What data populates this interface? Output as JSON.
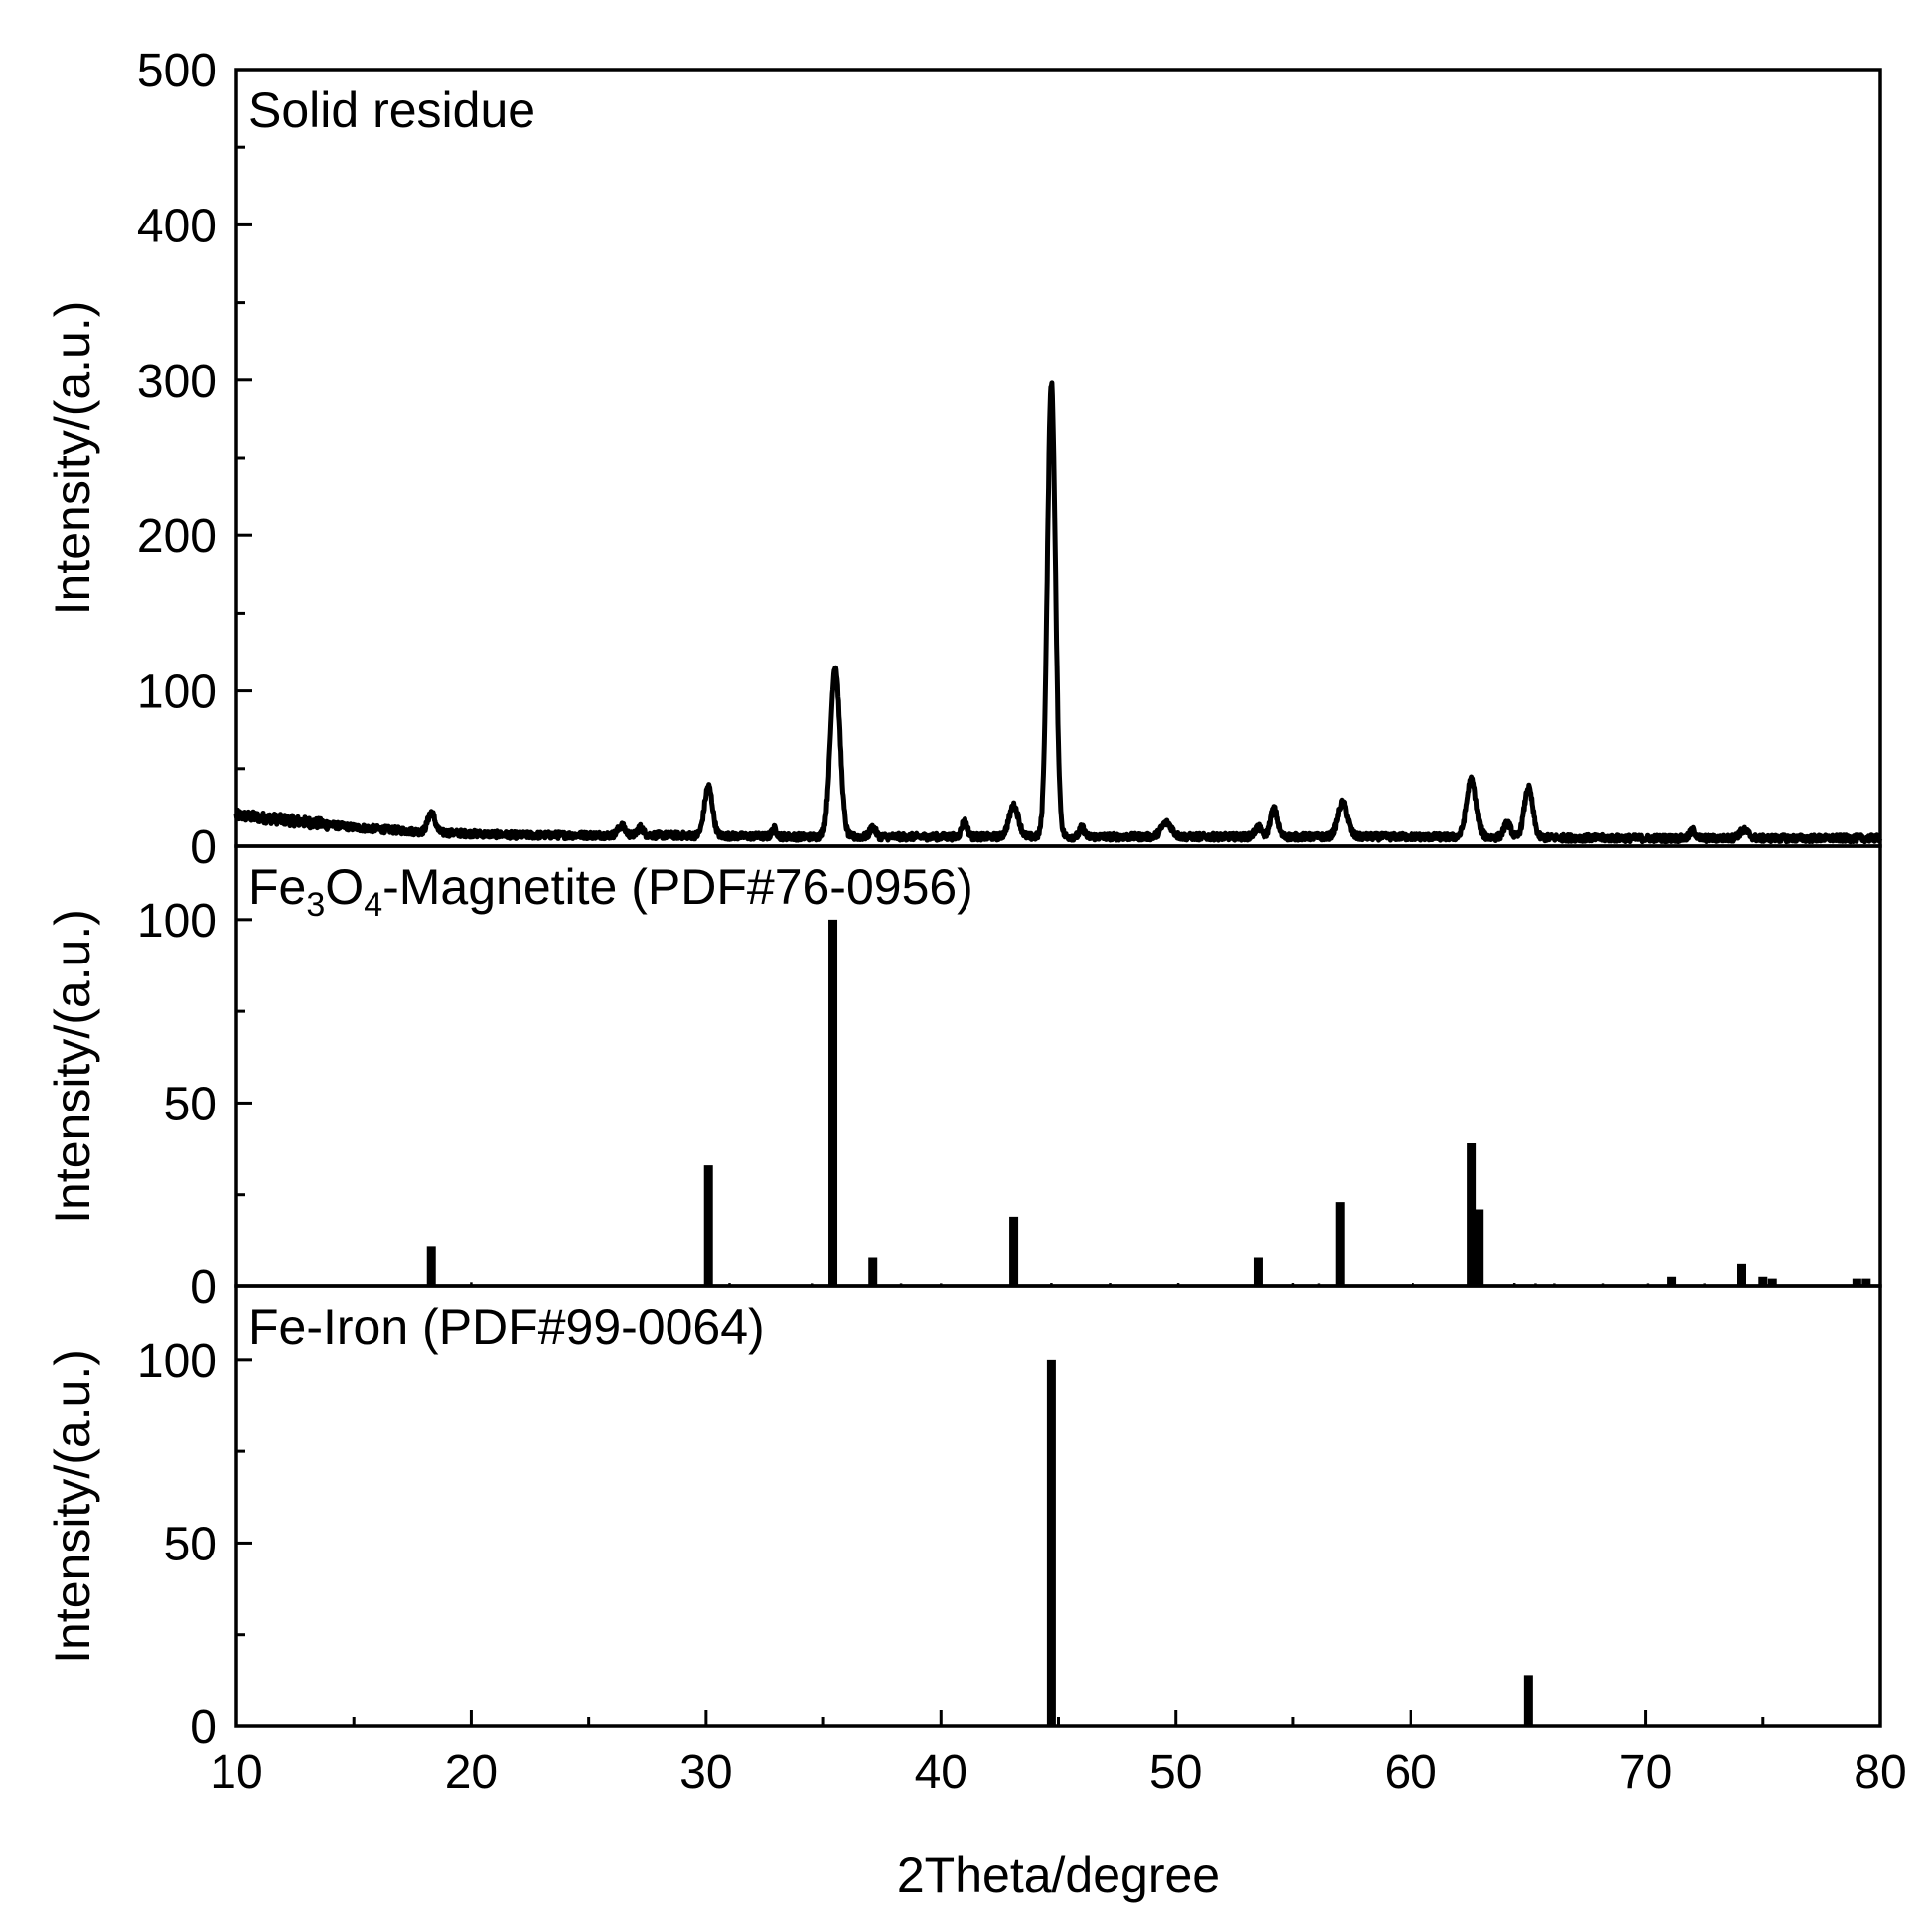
{
  "chart_data": {
    "type": "line",
    "xlabel": "2Theta/degree",
    "xlim": [
      10,
      80
    ],
    "x_ticks": [
      "10",
      "20",
      "30",
      "40",
      "50",
      "60",
      "70",
      "80"
    ],
    "panels": [
      {
        "id": "residue",
        "label": "Solid residue",
        "ylabel": "Intensity/(a.u.)",
        "ylim": [
          0,
          500
        ],
        "y_ticks": [
          "0",
          "100",
          "200",
          "300",
          "400",
          "500"
        ],
        "kind": "pattern",
        "baseline": [
          [
            10,
            20
          ],
          [
            12,
            17
          ],
          [
            15,
            12
          ],
          [
            18,
            9
          ],
          [
            22,
            7
          ],
          [
            28,
            7
          ],
          [
            34,
            6
          ],
          [
            40,
            6
          ],
          [
            50,
            6
          ],
          [
            60,
            6
          ],
          [
            70,
            5
          ],
          [
            80,
            5
          ]
        ],
        "peaks": [
          {
            "x": 18.3,
            "y": 13,
            "w": 0.15
          },
          {
            "x": 26.4,
            "y": 6,
            "w": 0.15
          },
          {
            "x": 27.2,
            "y": 5,
            "w": 0.12
          },
          {
            "x": 30.1,
            "y": 32,
            "w": 0.17
          },
          {
            "x": 32.9,
            "y": 5,
            "w": 0.1
          },
          {
            "x": 35.5,
            "y": 110,
            "w": 0.2
          },
          {
            "x": 37.1,
            "y": 6,
            "w": 0.12
          },
          {
            "x": 41.0,
            "y": 10,
            "w": 0.12
          },
          {
            "x": 43.1,
            "y": 20,
            "w": 0.2
          },
          {
            "x": 44.7,
            "y": 292,
            "w": 0.17
          },
          {
            "x": 46.0,
            "y": 6,
            "w": 0.1
          },
          {
            "x": 49.6,
            "y": 9,
            "w": 0.22
          },
          {
            "x": 53.5,
            "y": 6,
            "w": 0.15
          },
          {
            "x": 54.2,
            "y": 18,
            "w": 0.15
          },
          {
            "x": 57.1,
            "y": 22,
            "w": 0.2
          },
          {
            "x": 62.6,
            "y": 37,
            "w": 0.2
          },
          {
            "x": 64.1,
            "y": 9,
            "w": 0.15
          },
          {
            "x": 65.0,
            "y": 32,
            "w": 0.18
          },
          {
            "x": 72.0,
            "y": 5,
            "w": 0.12
          },
          {
            "x": 74.2,
            "y": 5,
            "w": 0.2
          }
        ]
      },
      {
        "id": "magnetite",
        "label_parts": [
          "Fe",
          "3",
          "O",
          "4",
          "-Magnetite (PDF#76-0956)"
        ],
        "ylabel": "Intensity/(a.u.)",
        "ylim": [
          0,
          120
        ],
        "y_ticks": [
          "0",
          "50",
          "100"
        ],
        "kind": "sticks",
        "sticks": [
          [
            18.3,
            11
          ],
          [
            30.1,
            33
          ],
          [
            35.4,
            100
          ],
          [
            37.1,
            8
          ],
          [
            43.1,
            19
          ],
          [
            53.5,
            8
          ],
          [
            57.0,
            23
          ],
          [
            62.6,
            39
          ],
          [
            62.9,
            21
          ],
          [
            71.1,
            2.5
          ],
          [
            74.1,
            6
          ],
          [
            75.0,
            2.5
          ],
          [
            75.4,
            2
          ],
          [
            79.0,
            2
          ],
          [
            79.4,
            2
          ]
        ],
        "minor_sticks": [
          [
            20.0,
            1
          ],
          [
            31.0,
            0.8
          ],
          [
            34.5,
            0.7
          ],
          [
            38.3,
            0.7
          ],
          [
            40.0,
            0.7
          ],
          [
            44.7,
            0.8
          ],
          [
            47.2,
            0.8
          ],
          [
            50.1,
            0.8
          ],
          [
            55.0,
            0.8
          ],
          [
            56.1,
            0.7
          ],
          [
            60.1,
            0.8
          ],
          [
            64.4,
            0.8
          ],
          [
            65.3,
            0.7
          ],
          [
            66.1,
            0.7
          ],
          [
            68.2,
            0.7
          ],
          [
            70.1,
            0.7
          ],
          [
            72.5,
            0.7
          ]
        ]
      },
      {
        "id": "iron",
        "label": "Fe-Iron (PDF#99-0064)",
        "ylabel": "Intensity/(a.u.)",
        "ylim": [
          0,
          120
        ],
        "y_ticks": [
          "0",
          "50",
          "100"
        ],
        "kind": "sticks",
        "sticks": [
          [
            44.7,
            100
          ],
          [
            65.0,
            14
          ]
        ],
        "minor_sticks": []
      }
    ]
  }
}
